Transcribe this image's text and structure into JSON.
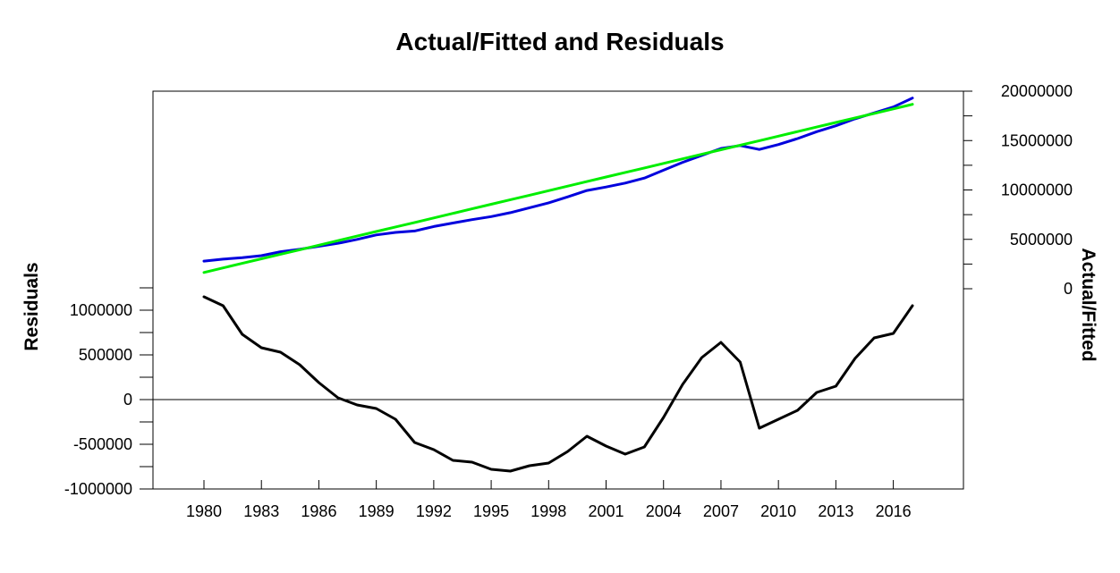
{
  "chart_data": {
    "type": "line",
    "title": "Actual/Fitted and Residuals",
    "x": [
      1980,
      1981,
      1982,
      1983,
      1984,
      1985,
      1986,
      1987,
      1988,
      1989,
      1990,
      1991,
      1992,
      1993,
      1994,
      1995,
      1996,
      1997,
      1998,
      1999,
      2000,
      2001,
      2002,
      2003,
      2004,
      2005,
      2006,
      2007,
      2008,
      2009,
      2010,
      2011,
      2012,
      2013,
      2014,
      2015,
      2016,
      2017
    ],
    "x_tick_labels": [
      "1980",
      "1983",
      "1986",
      "1989",
      "1992",
      "1995",
      "1998",
      "2001",
      "2004",
      "2007",
      "2010",
      "2013",
      "2016"
    ],
    "left_axis": {
      "label": "Residuals",
      "range": [
        -1000000,
        1250000
      ],
      "tick_labels": [
        "-1000000",
        "-500000",
        "0",
        "500000",
        "1000000"
      ]
    },
    "right_axis": {
      "label": "Actual/Fitted",
      "range": [
        0,
        20000000
      ],
      "tick_labels": [
        "0",
        "5000000",
        "10000000",
        "15000000",
        "20000000"
      ]
    },
    "series": [
      {
        "key": "actual",
        "axis": "right",
        "color": "#0000dd",
        "values": [
          2800000,
          3000000,
          3150000,
          3350000,
          3750000,
          4000000,
          4300000,
          4600000,
          5000000,
          5450000,
          5700000,
          5850000,
          6300000,
          6650000,
          7000000,
          7300000,
          7700000,
          8200000,
          8700000,
          9300000,
          9950000,
          10300000,
          10700000,
          11200000,
          12000000,
          12800000,
          13500000,
          14200000,
          14500000,
          14100000,
          14600000,
          15200000,
          15900000,
          16500000,
          17200000,
          17800000,
          18400000,
          19300000
        ]
      },
      {
        "key": "fitted",
        "axis": "right",
        "color": "#00ee00",
        "values": [
          1650000,
          2110000,
          2570000,
          3030000,
          3490000,
          3950000,
          4410000,
          4870000,
          5330000,
          5790000,
          6250000,
          6710000,
          7170000,
          7630000,
          8090000,
          8550000,
          9010000,
          9470000,
          9930000,
          10390000,
          10850000,
          11310000,
          11770000,
          12230000,
          12690000,
          13150000,
          13610000,
          14070000,
          14530000,
          14990000,
          15450000,
          15910000,
          16370000,
          16830000,
          17290000,
          17750000,
          18210000,
          18670000
        ]
      },
      {
        "key": "residual",
        "axis": "left",
        "color": "#000000",
        "values": [
          1150000,
          1050000,
          730000,
          580000,
          530000,
          390000,
          190000,
          20000,
          -60000,
          -100000,
          -220000,
          -480000,
          -560000,
          -680000,
          -700000,
          -780000,
          -800000,
          -740000,
          -710000,
          -580000,
          -410000,
          -520000,
          -610000,
          -530000,
          -200000,
          170000,
          470000,
          640000,
          420000,
          -320000,
          -220000,
          -120000,
          80000,
          150000,
          460000,
          690000,
          740000,
          1050000
        ]
      }
    ],
    "zero_line": true,
    "grid": false,
    "legend": "none"
  }
}
